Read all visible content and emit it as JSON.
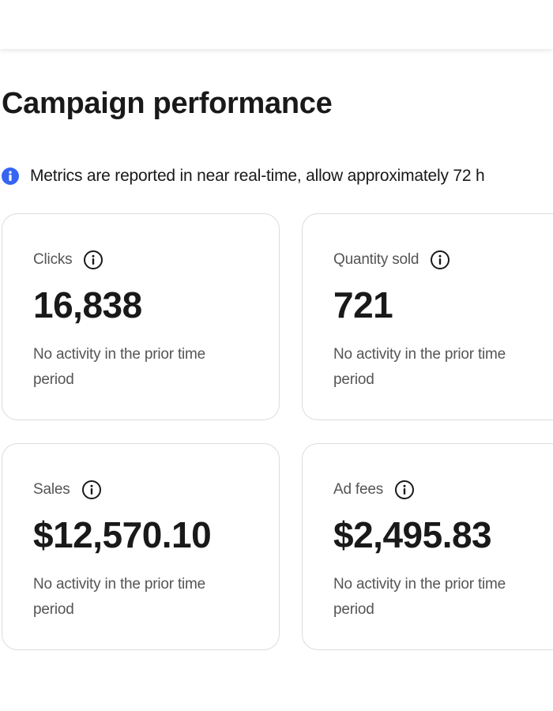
{
  "header": {
    "title": "Campaign performance"
  },
  "notice": {
    "icon": "info-filled-icon",
    "accent_color": "#3665f3",
    "text": "Metrics are reported in near real-time, allow approximately 72 h"
  },
  "metrics": [
    {
      "label": "Clicks",
      "value": "16,838",
      "note": "No activity in the prior time period",
      "icon": "info-outline-icon"
    },
    {
      "label": "Quantity sold",
      "value": "721",
      "note": "No activity in the prior time period",
      "icon": "info-outline-icon"
    },
    {
      "label": "Sales",
      "value": "$12,570.10",
      "note": "No activity in the prior time period",
      "icon": "info-outline-icon"
    },
    {
      "label": "Ad fees",
      "value": "$2,495.83",
      "note": "No activity in the prior time period",
      "icon": "info-outline-icon"
    }
  ]
}
